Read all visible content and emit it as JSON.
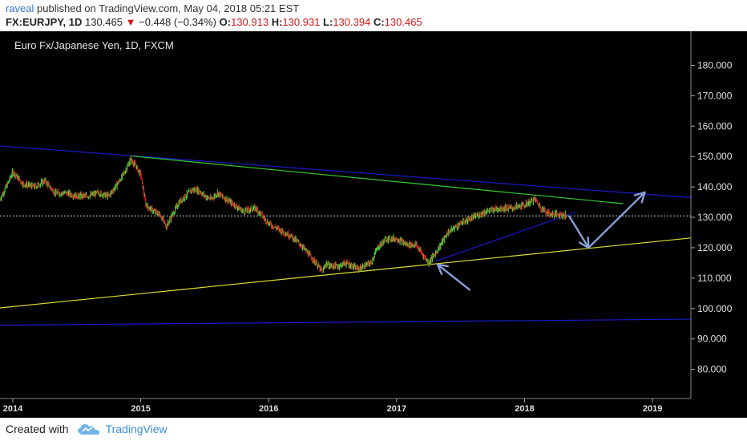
{
  "header": {
    "user": "raveal",
    "published_text": "published on TradingView.com, May 04, 2018 05:21 EST",
    "symbol": "FX:EURJPY, 1D",
    "last": "130.465",
    "change": "−0.448 (−0.34%)",
    "o_label": "O:",
    "o_value": "130.913",
    "h_label": "H:",
    "h_value": "130.931",
    "l_label": "L:",
    "l_value": "130.394",
    "c_label": "C:",
    "c_value": "130.465"
  },
  "chart_title": "Euro Fx/Japanese Yen, 1D, FXCM",
  "colors": {
    "background": "#000000",
    "up_candle": "#3cd83c",
    "down_candle": "#e02020",
    "blue_trendline": "#1a1acc",
    "green_trendline": "#33cc33",
    "yellow_trendline": "#dddd33",
    "arrow": "#8a9ed8",
    "price_line": "#cccccc"
  },
  "footer": {
    "created_with": "Created with",
    "brand": "TradingView"
  },
  "chart_data": {
    "type": "line",
    "title": "Euro Fx/Japanese Yen, 1D, FXCM",
    "xlabel": "",
    "ylabel": "",
    "x_ticks": [
      "2014",
      "2015",
      "2016",
      "2017",
      "2018",
      "2019"
    ],
    "x_tick_years": [
      2014,
      2015,
      2016,
      2017,
      2018,
      2019
    ],
    "xlim": [
      2013.9,
      2019.3
    ],
    "y_ticks": [
      80,
      90,
      100,
      110,
      120,
      130,
      140,
      150,
      160,
      170,
      180
    ],
    "y_tick_labels": [
      "80.000",
      "90.000",
      "100.000",
      "110.000",
      "120.000",
      "130.000",
      "140.000",
      "150.000",
      "160.000",
      "170.000",
      "180.000"
    ],
    "ylim": [
      70.4,
      191.2
    ],
    "current_price": 130.465,
    "grid": false,
    "series": [
      {
        "x": [
          2013.9,
          2013.96,
          2014.0,
          2014.08,
          2014.17,
          2014.25,
          2014.33,
          2014.42,
          2014.5,
          2014.58,
          2014.67,
          2014.75,
          2014.8,
          2014.85,
          2014.9,
          2014.92,
          2014.96,
          2015.0,
          2015.04,
          2015.1,
          2015.15,
          2015.2,
          2015.3,
          2015.4,
          2015.45,
          2015.5,
          2015.55,
          2015.6,
          2015.7,
          2015.8,
          2015.9,
          2016.0,
          2016.08,
          2016.17,
          2016.25,
          2016.35,
          2016.42,
          2016.45,
          2016.47,
          2016.5,
          2016.55,
          2016.6,
          2016.7,
          2016.8,
          2016.85,
          2016.92,
          2017.0,
          2017.08,
          2017.15,
          2017.25,
          2017.3,
          2017.4,
          2017.5,
          2017.6,
          2017.7,
          2017.8,
          2017.9,
          2018.0,
          2018.08,
          2018.13,
          2018.2,
          2018.28,
          2018.33
        ],
        "values": [
          136,
          141,
          145,
          141,
          140,
          142,
          138,
          138,
          137,
          137,
          138,
          137,
          140,
          143,
          147,
          149,
          147,
          144,
          134,
          132,
          131,
          127,
          135,
          139,
          139,
          137,
          136,
          138,
          135,
          132,
          133,
          128,
          126,
          124,
          121,
          116,
          112,
          115,
          114,
          114,
          114,
          115,
          113,
          115,
          120,
          123,
          123,
          121,
          121,
          115,
          118,
          125,
          128,
          130,
          132,
          133,
          133,
          134,
          136,
          133,
          131,
          131,
          130.465
        ]
      }
    ],
    "trendlines": [
      {
        "color": "blue",
        "from": [
          2013.9,
          153.5
        ],
        "to": [
          2019.3,
          136.5
        ]
      },
      {
        "color": "blue",
        "from": [
          2013.9,
          94.5
        ],
        "to": [
          2019.3,
          96.5
        ]
      },
      {
        "color": "green",
        "from": [
          2014.92,
          150.2
        ],
        "to": [
          2018.77,
          134.5
        ]
      },
      {
        "color": "yellow",
        "from": [
          2013.9,
          100.2
        ],
        "to": [
          2019.3,
          123.2
        ]
      },
      {
        "color": "blue",
        "from": [
          2017.3,
          115.5
        ],
        "to": [
          2018.4,
          131.7
        ]
      }
    ],
    "arrows": [
      {
        "from": [
          2017.57,
          106.2
        ],
        "to": [
          2017.32,
          114.5
        ]
      },
      {
        "from": [
          2018.35,
          130.3
        ],
        "to": [
          2018.5,
          120.0
        ]
      },
      {
        "from": [
          2018.5,
          120.0
        ],
        "to": [
          2018.94,
          138.2
        ]
      }
    ]
  }
}
